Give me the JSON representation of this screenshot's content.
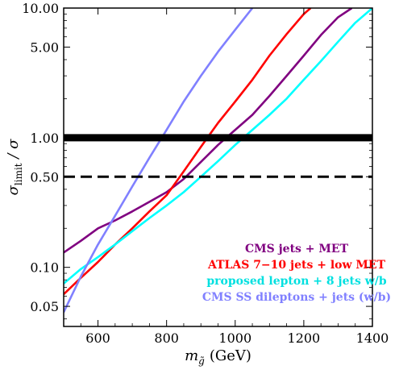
{
  "chart_data": {
    "type": "line",
    "xlabel": "m",
    "xlabel_sub": "g̃",
    "xunit": "(GeV)",
    "ylabel": "σ",
    "ylabel_sub": "limit",
    "ylabel_tail": " / σ",
    "xlim": [
      500,
      1400
    ],
    "ylim": [
      0.035,
      10
    ],
    "yscale": "log",
    "x_ticks": [
      600,
      800,
      1000,
      1200,
      1400
    ],
    "x_tick_labels": [
      "600",
      "800",
      "1000",
      "1200",
      "1400"
    ],
    "y_ticks": [
      0.05,
      0.1,
      0.5,
      1,
      5,
      10
    ],
    "y_tick_labels": [
      "0.05",
      "0.10",
      "0.50",
      "1.00",
      "5.00",
      "10.00"
    ],
    "grid": false,
    "legend_position": "bottom-right",
    "series": [
      {
        "name": "CMS jets + MET",
        "color": "#800080",
        "x": [
          500,
          550,
          600,
          650,
          700,
          750,
          800,
          850,
          900,
          950,
          1000,
          1050,
          1100,
          1150,
          1200,
          1250,
          1300,
          1340
        ],
        "y": [
          0.13,
          0.16,
          0.2,
          0.23,
          0.27,
          0.32,
          0.38,
          0.48,
          0.65,
          0.88,
          1.15,
          1.5,
          2.1,
          3.0,
          4.3,
          6.2,
          8.5,
          10
        ]
      },
      {
        "name": "ATLAS 7-10 jets + low MET",
        "color": "#ff0000",
        "x": [
          500,
          550,
          600,
          650,
          700,
          750,
          800,
          850,
          900,
          950,
          1000,
          1050,
          1100,
          1150,
          1200,
          1220
        ],
        "y": [
          0.062,
          0.083,
          0.11,
          0.15,
          0.2,
          0.27,
          0.36,
          0.55,
          0.85,
          1.3,
          1.9,
          2.8,
          4.3,
          6.3,
          9.0,
          10
        ]
      },
      {
        "name": "proposed lepton + 8 jets w/b",
        "color": "#00ffff",
        "x": [
          500,
          550,
          600,
          650,
          700,
          750,
          800,
          850,
          900,
          950,
          1000,
          1050,
          1100,
          1150,
          1200,
          1250,
          1300,
          1350,
          1400
        ],
        "y": [
          0.075,
          0.097,
          0.12,
          0.15,
          0.19,
          0.24,
          0.3,
          0.38,
          0.5,
          0.66,
          0.88,
          1.15,
          1.5,
          2.0,
          2.8,
          3.9,
          5.5,
          7.7,
          10
        ]
      },
      {
        "name": "CMS SS dileptons + jets (w/b)",
        "color": "#8080ff",
        "x": [
          500,
          550,
          600,
          650,
          700,
          750,
          800,
          850,
          900,
          950,
          1000,
          1050
        ],
        "y": [
          0.045,
          0.085,
          0.15,
          0.25,
          0.42,
          0.7,
          1.15,
          1.9,
          3.0,
          4.6,
          6.8,
          10
        ]
      }
    ],
    "reference_lines": [
      {
        "y": 1.0,
        "style": "solid",
        "weight": "thick",
        "color": "#000000"
      },
      {
        "y": 0.5,
        "style": "dashed",
        "weight": "medium",
        "color": "#000000"
      }
    ],
    "legend": [
      {
        "text": "CMS jets + MET",
        "color": "#800080"
      },
      {
        "text": "ATLAS 7−10 jets + low MET",
        "color": "#ff0000"
      },
      {
        "text": "proposed lepton + 8 jets w/b",
        "color": "#00e0e0"
      },
      {
        "text": "CMS SS dileptons + jets (w/b)",
        "color": "#8080ff"
      }
    ]
  }
}
